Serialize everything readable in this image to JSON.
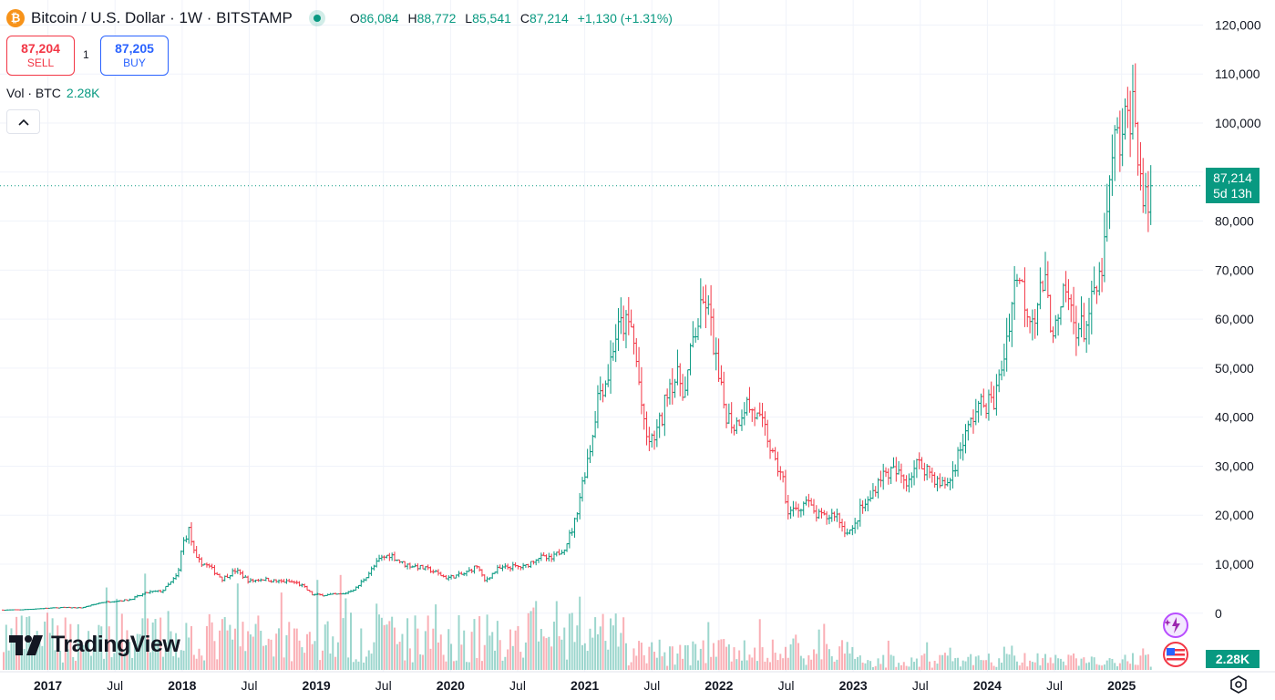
{
  "header": {
    "symbol_title": "Bitcoin / U.S. Dollar · 1W · BITSTAMP",
    "coin_icon": "bitcoin-icon",
    "open_label": "O",
    "open": "86,084",
    "high_label": "H",
    "high": "88,772",
    "low_label": "L",
    "low": "85,541",
    "close_label": "C",
    "close": "87,214",
    "change": "+1,130 (+1.31%)"
  },
  "trade": {
    "sell_price": "87,204",
    "sell_label": "SELL",
    "quantity": "1",
    "buy_price": "87,205",
    "buy_label": "BUY"
  },
  "volume_legend": {
    "label": "Vol · BTC",
    "value": "2.28K"
  },
  "price_label": {
    "price": "87,214",
    "countdown": "5d 13h"
  },
  "volume_label": "2.28K",
  "brand": "TradingView",
  "colors": {
    "up": "#089981",
    "down": "#f23645",
    "grid": "#f0f3fa"
  },
  "chart_data": {
    "type": "candlestick-ohlc",
    "title": "",
    "y_axis": {
      "ylim": [
        -3200,
        122500
      ],
      "ticks": [
        0,
        10000,
        20000,
        30000,
        40000,
        50000,
        60000,
        70000,
        80000,
        90000,
        100000,
        110000,
        120000
      ],
      "tick_labels": [
        "0",
        "10,000",
        "20,000",
        "30,000",
        "40,000",
        "50,000",
        "60,000",
        "70,000",
        "80,000",
        "90,000",
        "100,000",
        "110,000",
        "120,000"
      ]
    },
    "x_axis": {
      "start": 2016.67,
      "end": 2025.43,
      "ticks": [
        2017,
        2017.5,
        2018,
        2018.5,
        2019,
        2019.5,
        2020,
        2020.5,
        2021,
        2021.5,
        2022,
        2022.5,
        2023,
        2023.5,
        2024,
        2024.5,
        2025
      ],
      "tick_labels": [
        "2017",
        "Jul",
        "2018",
        "Jul",
        "2019",
        "Jul",
        "2020",
        "Jul",
        "2021",
        "Jul",
        "2022",
        "Jul",
        "2023",
        "Jul",
        "2024",
        "Jul",
        "2025"
      ]
    },
    "current_price": 87214,
    "series": [
      {
        "name": "price",
        "x": [
          2016.67,
          2016.8,
          2016.95,
          2017.1,
          2017.25,
          2017.4,
          2017.5,
          2017.6,
          2017.75,
          2017.85,
          2017.92,
          2017.97,
          2018.0,
          2018.05,
          2018.1,
          2018.2,
          2018.3,
          2018.4,
          2018.5,
          2018.6,
          2018.7,
          2018.8,
          2018.85,
          2018.9,
          2018.97,
          2019.05,
          2019.2,
          2019.3,
          2019.4,
          2019.47,
          2019.55,
          2019.65,
          2019.75,
          2019.85,
          2019.97,
          2020.1,
          2020.2,
          2020.25,
          2020.35,
          2020.45,
          2020.55,
          2020.65,
          2020.75,
          2020.85,
          2020.92,
          2021.0,
          2021.05,
          2021.1,
          2021.17,
          2021.22,
          2021.28,
          2021.35,
          2021.4,
          2021.45,
          2021.5,
          2021.58,
          2021.62,
          2021.7,
          2021.75,
          2021.8,
          2021.85,
          2021.9,
          2021.95,
          2022.0,
          2022.05,
          2022.12,
          2022.2,
          2022.28,
          2022.35,
          2022.42,
          2022.47,
          2022.5,
          2022.58,
          2022.65,
          2022.72,
          2022.8,
          2022.87,
          2022.93,
          2023.0,
          2023.05,
          2023.12,
          2023.2,
          2023.3,
          2023.4,
          2023.47,
          2023.55,
          2023.65,
          2023.72,
          2023.8,
          2023.85,
          2023.92,
          2024.0,
          2024.05,
          2024.12,
          2024.18,
          2024.22,
          2024.3,
          2024.35,
          2024.42,
          2024.47,
          2024.52,
          2024.58,
          2024.65,
          2024.72,
          2024.78,
          2024.84,
          2024.88,
          2024.92,
          2024.96,
          2025.0,
          2025.03,
          2025.08,
          2025.12,
          2025.15,
          2025.19,
          2025.22
        ],
        "close": [
          650,
          700,
          950,
          1150,
          1100,
          2200,
          2500,
          2700,
          4300,
          4500,
          6400,
          8000,
          14000,
          17000,
          11000,
          9500,
          7000,
          8800,
          6500,
          7000,
          6500,
          6400,
          6200,
          5500,
          3800,
          3700,
          3900,
          5200,
          8500,
          11000,
          12000,
          10000,
          9500,
          8800,
          7200,
          8000,
          9700,
          6500,
          9000,
          9500,
          9400,
          11500,
          11000,
          13500,
          18000,
          29000,
          35000,
          45000,
          48000,
          56000,
          59000,
          58000,
          48000,
          36000,
          35000,
          40000,
          47000,
          48000,
          45000,
          55000,
          60000,
          64000,
          57000,
          47000,
          41000,
          38000,
          43000,
          40000,
          37000,
          30000,
          29000,
          21000,
          21000,
          23000,
          20000,
          19500,
          20500,
          17000,
          16800,
          21000,
          23000,
          28000,
          29000,
          27000,
          30500,
          29500,
          26000,
          27000,
          34000,
          37000,
          42000,
          43000,
          43000,
          52000,
          63000,
          70000,
          62000,
          61000,
          68000,
          60000,
          57000,
          66000,
          59000,
          58000,
          63000,
          68000,
          76000,
          90000,
          97000,
          95000,
          100000,
          104000,
          96000,
          86000,
          82000,
          87214
        ]
      }
    ]
  }
}
